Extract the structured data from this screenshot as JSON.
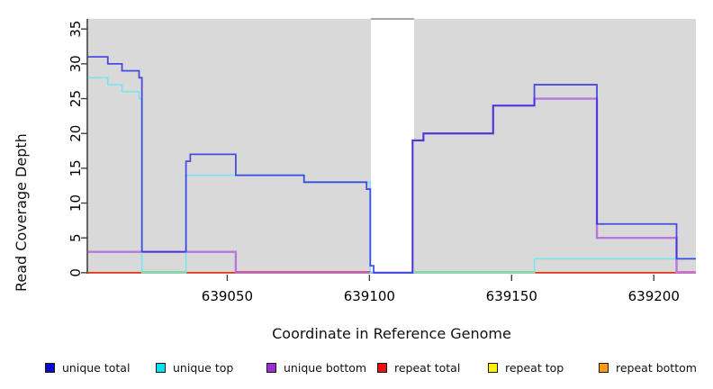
{
  "chart_data": {
    "type": "line",
    "subtype": "step",
    "title": "",
    "xlabel": "Coordinate in Reference Genome",
    "ylabel": "Read Coverage Depth",
    "xlim": [
      639000.8,
      639214.8
    ],
    "ylim": [
      -0.15,
      36.45
    ],
    "xticks": [
      639050,
      639100,
      639150,
      639200
    ],
    "yticks": [
      0,
      5,
      10,
      15,
      20,
      25,
      30,
      35
    ],
    "grid": false,
    "legend_position": "bottom",
    "plot_bg": "#d9d9d9",
    "axis_color": "#404040",
    "gap_region": {
      "from": 639100.5,
      "to": 639115.7,
      "color": "#ffffff",
      "border": "#8a8a8a"
    },
    "series": [
      {
        "name": "unique total",
        "legend_color": "#0a0ace",
        "line_color": "#2323e2",
        "opacity": 0.78,
        "width": 1.8,
        "points": [
          [
            639001,
            31
          ],
          [
            639008,
            30
          ],
          [
            639013,
            29
          ],
          [
            639019,
            28
          ],
          [
            639020,
            3
          ],
          [
            639035.5,
            16
          ],
          [
            639037,
            17
          ],
          [
            639053,
            14
          ],
          [
            639077,
            13
          ],
          [
            639099,
            12
          ],
          [
            639100.3,
            1
          ],
          [
            639101.5,
            0
          ],
          [
            639115.2,
            19
          ],
          [
            639119,
            20
          ],
          [
            639143.5,
            24
          ],
          [
            639158,
            27
          ],
          [
            639180,
            7
          ],
          [
            639208,
            2
          ]
        ]
      },
      {
        "name": "unique top",
        "legend_color": "#00e4ef",
        "line_color": "#79e5ec",
        "opacity": 1,
        "width": 1.6,
        "points": [
          [
            639001,
            28
          ],
          [
            639008,
            27
          ],
          [
            639013,
            26
          ],
          [
            639019,
            25
          ],
          [
            639020,
            0
          ],
          [
            639035.5,
            14
          ],
          [
            639077,
            13
          ],
          [
            639100.3,
            0
          ],
          [
            639158,
            2
          ]
        ]
      },
      {
        "name": "unique bottom",
        "legend_color": "#9a2fd4",
        "line_color": "#b678dd",
        "opacity": 1,
        "width": 2.4,
        "points": [
          [
            639001,
            3
          ],
          [
            639053,
            0
          ],
          [
            639115.2,
            19
          ],
          [
            639119,
            20
          ],
          [
            639143.5,
            24
          ],
          [
            639158,
            25
          ],
          [
            639180,
            5
          ],
          [
            639208,
            0
          ]
        ]
      },
      {
        "name": "repeat total",
        "legend_color": "#ed1111",
        "line_color": "#dd3333",
        "opacity": 1,
        "width": 1.6,
        "points": [
          [
            639001,
            0
          ]
        ]
      },
      {
        "name": "repeat top",
        "legend_color": "#fef103",
        "line_color": "#f5e93d",
        "opacity": 1,
        "width": 1.6,
        "points": [
          [
            639001,
            0
          ]
        ]
      },
      {
        "name": "repeat bottom",
        "legend_color": "#ff9912",
        "line_color": "#ff9d24",
        "opacity": 1,
        "width": 2,
        "points": [
          [
            639001,
            0
          ]
        ]
      }
    ],
    "zero_overlays": [
      {
        "from": 639020,
        "to": 639035.5,
        "color": "#7fd7a6"
      },
      {
        "from": 639053,
        "to": 639100.3,
        "color": "#d05878"
      },
      {
        "from": 639115.7,
        "to": 639158,
        "color": "#84d7a0"
      },
      {
        "from": 639208,
        "to": 639214.8,
        "color": "#dd6fb5"
      }
    ]
  }
}
